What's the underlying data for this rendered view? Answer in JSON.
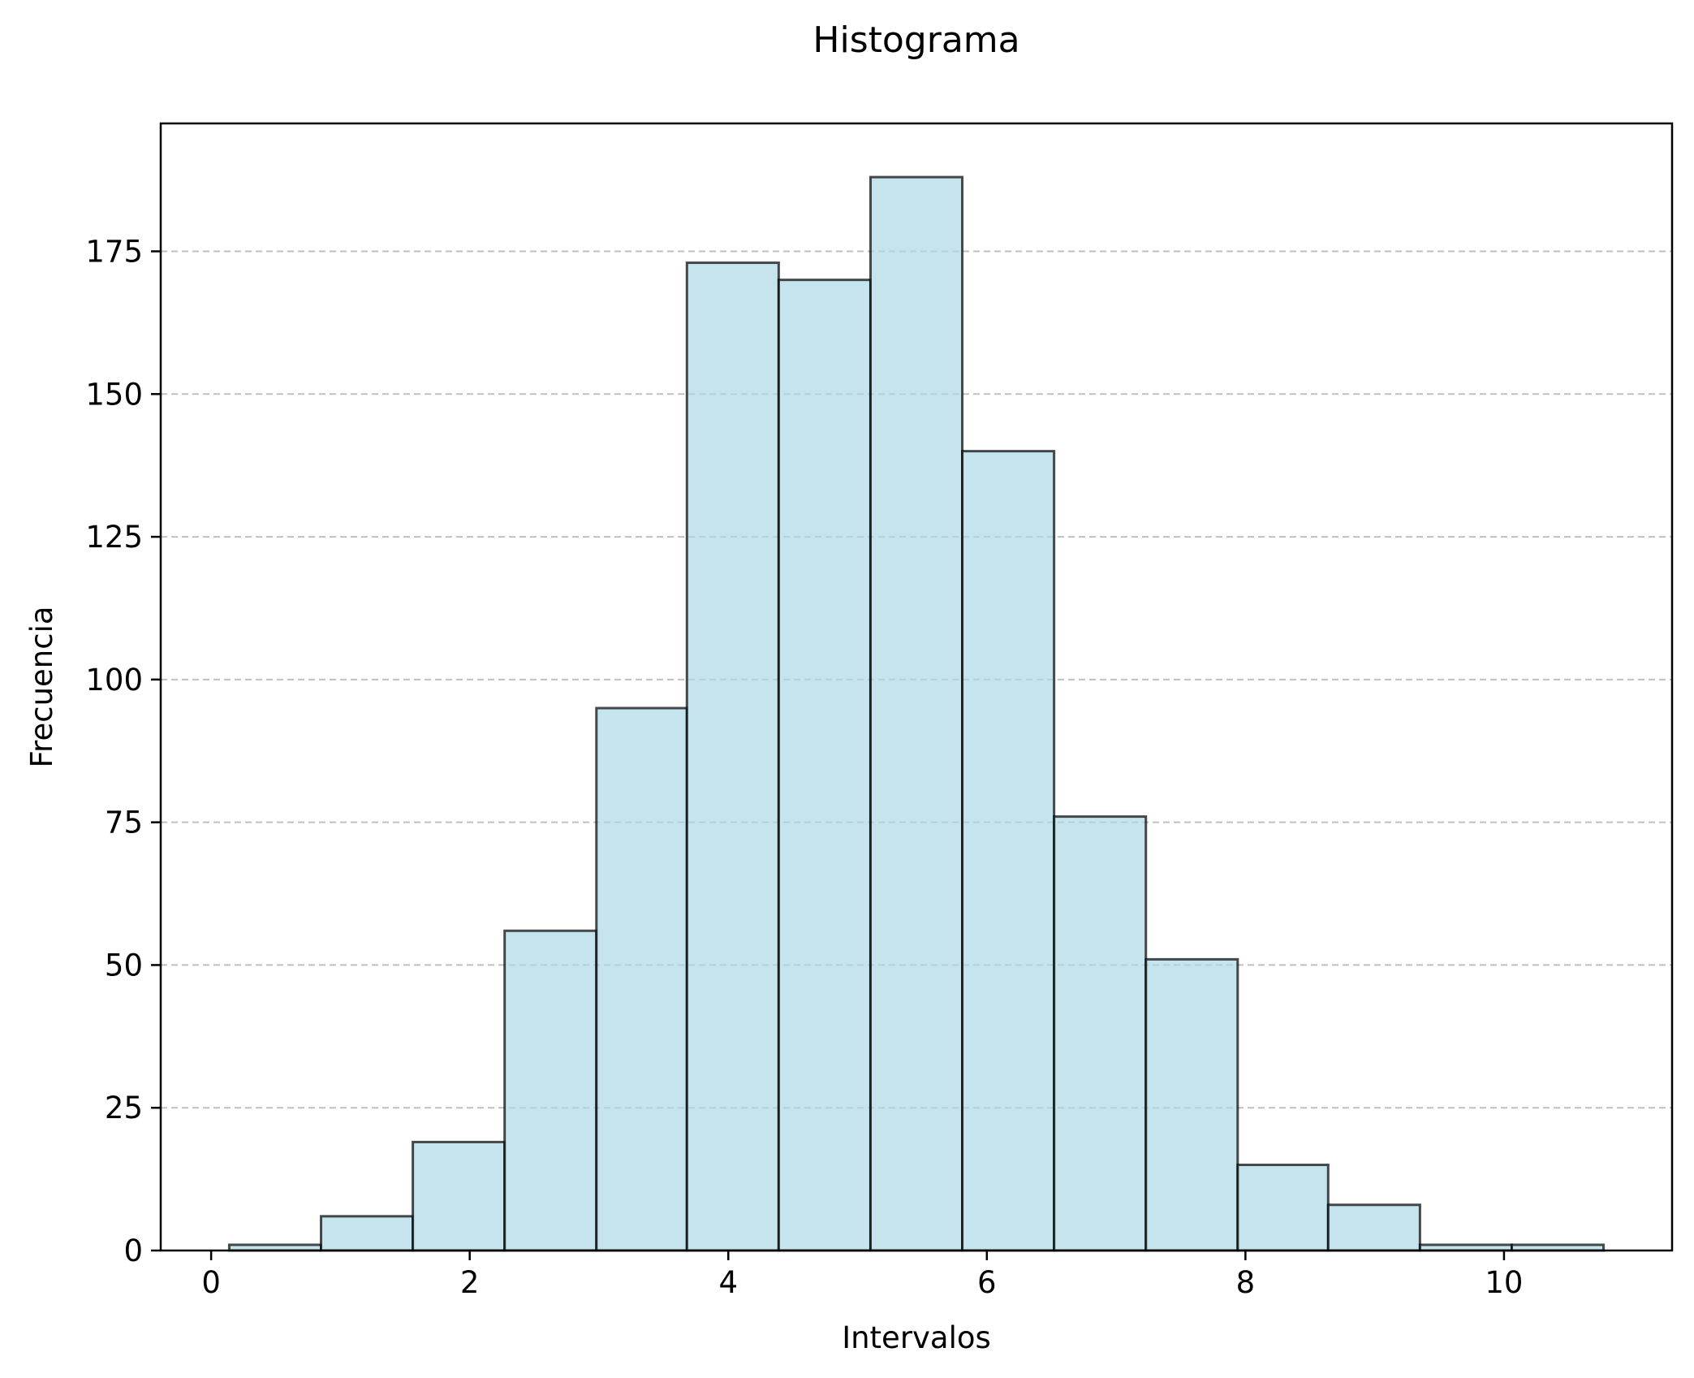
{
  "chart_data": {
    "type": "bar",
    "title": "Histograma",
    "xlabel": "Intervalos",
    "ylabel": "Frecuencia",
    "bin_edges": [
      0.14,
      0.85,
      1.56,
      2.27,
      2.98,
      3.68,
      4.39,
      5.1,
      5.81,
      6.52,
      7.23,
      7.94,
      8.64,
      9.35,
      10.06,
      10.77
    ],
    "values": [
      1,
      6,
      19,
      56,
      95,
      173,
      170,
      188,
      140,
      76,
      51,
      15,
      8,
      1,
      1
    ],
    "xlim": [
      -0.39,
      11.3
    ],
    "ylim": [
      0,
      197.4
    ],
    "xticks": [
      0,
      2,
      4,
      6,
      8,
      10
    ],
    "xtick_labels": [
      "0",
      "2",
      "4",
      "6",
      "8",
      "10"
    ],
    "yticks": [
      0,
      25,
      50,
      75,
      100,
      125,
      150,
      175
    ],
    "ytick_labels": [
      "0",
      "25",
      "50",
      "75",
      "100",
      "125",
      "150",
      "175"
    ],
    "grid": "y-dashed",
    "bar_color": "#add8e6"
  }
}
